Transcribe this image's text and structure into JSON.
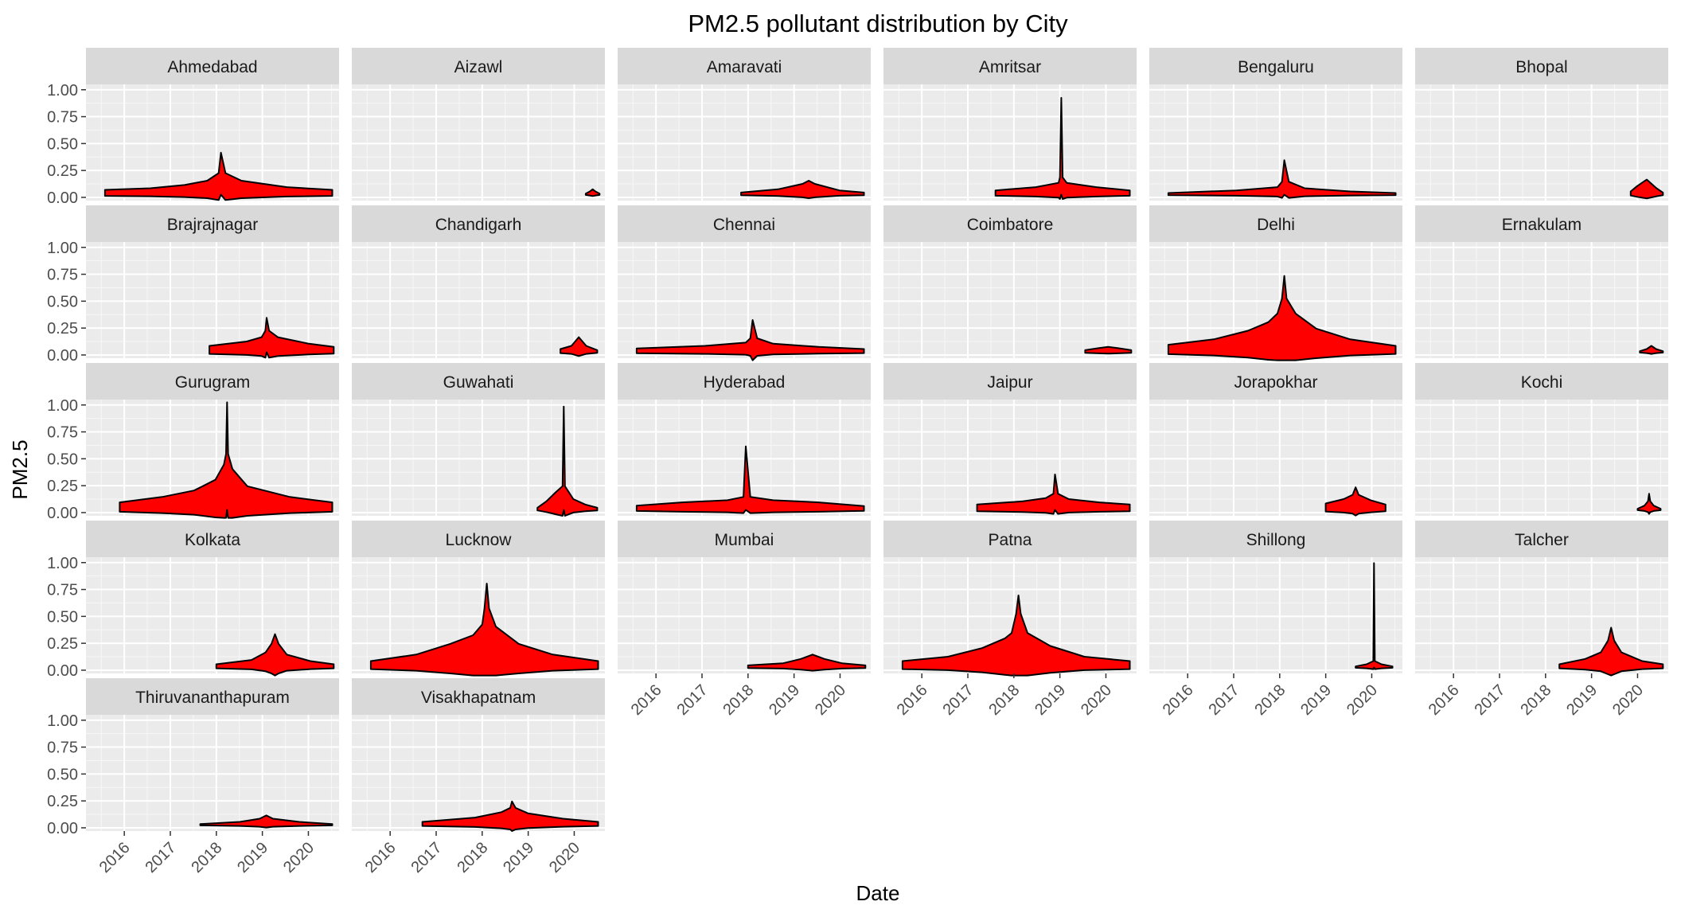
{
  "chart_data": {
    "type": "violin",
    "title": "PM2.5 pollutant distribution by City",
    "xlabel": "Date",
    "ylabel": "PM2.5",
    "x_ticks": [
      "2016",
      "2017",
      "2018",
      "2019",
      "2020"
    ],
    "y_ticks": [
      "0.00",
      "0.25",
      "0.50",
      "0.75",
      "1.00"
    ],
    "ylim": [
      -0.03,
      1.05
    ],
    "xlim": [
      "2015-03",
      "2020-09"
    ],
    "grid": true,
    "fill_color": "#ff0000",
    "outline_color": "#000000",
    "panel_background": "#ebebeb",
    "strip_background": "#d9d9d9",
    "facets": [
      {
        "name": "Ahmedabad",
        "x_start": 2015.58,
        "x_end": 2020.52,
        "profile": [
          [
            0,
            0.045
          ],
          [
            0.2,
            0.06
          ],
          [
            0.35,
            0.09
          ],
          [
            0.45,
            0.13
          ],
          [
            0.5,
            0.2
          ],
          [
            0.51,
            0.39
          ],
          [
            0.53,
            0.2
          ],
          [
            0.6,
            0.13
          ],
          [
            0.8,
            0.07
          ],
          [
            1,
            0.045
          ]
        ]
      },
      {
        "name": "Aizawl",
        "x_start": 2020.25,
        "x_end": 2020.55,
        "profile": [
          [
            0,
            0.01
          ],
          [
            0.3,
            0.03
          ],
          [
            0.5,
            0.05
          ],
          [
            0.7,
            0.03
          ],
          [
            1,
            0.01
          ]
        ]
      },
      {
        "name": "Amaravati",
        "x_start": 2017.85,
        "x_end": 2020.52,
        "profile": [
          [
            0,
            0.02
          ],
          [
            0.3,
            0.05
          ],
          [
            0.5,
            0.1
          ],
          [
            0.55,
            0.13
          ],
          [
            0.6,
            0.1
          ],
          [
            0.8,
            0.04
          ],
          [
            1,
            0.02
          ]
        ]
      },
      {
        "name": "Amritsar",
        "x_start": 2017.6,
        "x_end": 2020.52,
        "profile": [
          [
            0,
            0.04
          ],
          [
            0.3,
            0.07
          ],
          [
            0.47,
            0.11
          ],
          [
            0.48,
            0.16
          ],
          [
            0.49,
            0.9
          ],
          [
            0.5,
            0.16
          ],
          [
            0.53,
            0.11
          ],
          [
            0.75,
            0.07
          ],
          [
            1,
            0.04
          ]
        ]
      },
      {
        "name": "Bengaluru",
        "x_start": 2015.58,
        "x_end": 2020.52,
        "profile": [
          [
            0,
            0.015
          ],
          [
            0.3,
            0.04
          ],
          [
            0.48,
            0.07
          ],
          [
            0.5,
            0.12
          ],
          [
            0.51,
            0.32
          ],
          [
            0.53,
            0.12
          ],
          [
            0.6,
            0.06
          ],
          [
            0.8,
            0.03
          ],
          [
            1,
            0.015
          ]
        ]
      },
      {
        "name": "Bhopal",
        "x_start": 2019.85,
        "x_end": 2020.55,
        "profile": [
          [
            0,
            0.03
          ],
          [
            0.2,
            0.08
          ],
          [
            0.5,
            0.14
          ],
          [
            0.8,
            0.06
          ],
          [
            1,
            0.02
          ]
        ]
      },
      {
        "name": "Brajrajnagar",
        "x_start": 2017.85,
        "x_end": 2020.55,
        "profile": [
          [
            0,
            0.06
          ],
          [
            0.3,
            0.1
          ],
          [
            0.42,
            0.14
          ],
          [
            0.45,
            0.2
          ],
          [
            0.46,
            0.32
          ],
          [
            0.48,
            0.2
          ],
          [
            0.55,
            0.14
          ],
          [
            0.8,
            0.08
          ],
          [
            1,
            0.05
          ]
        ]
      },
      {
        "name": "Chandigarh",
        "x_start": 2019.7,
        "x_end": 2020.5,
        "profile": [
          [
            0,
            0.03
          ],
          [
            0.3,
            0.06
          ],
          [
            0.5,
            0.14
          ],
          [
            0.7,
            0.06
          ],
          [
            1,
            0.02
          ]
        ]
      },
      {
        "name": "Chennai",
        "x_start": 2015.58,
        "x_end": 2020.52,
        "profile": [
          [
            0,
            0.035
          ],
          [
            0.3,
            0.06
          ],
          [
            0.48,
            0.09
          ],
          [
            0.5,
            0.13
          ],
          [
            0.51,
            0.3
          ],
          [
            0.53,
            0.13
          ],
          [
            0.6,
            0.08
          ],
          [
            0.8,
            0.05
          ],
          [
            1,
            0.03
          ]
        ]
      },
      {
        "name": "Coimbatore",
        "x_start": 2019.55,
        "x_end": 2020.55,
        "profile": [
          [
            0,
            0.02
          ],
          [
            0.3,
            0.04
          ],
          [
            0.5,
            0.05
          ],
          [
            0.7,
            0.04
          ],
          [
            1,
            0.02
          ]
        ]
      },
      {
        "name": "Delhi",
        "x_start": 2015.58,
        "x_end": 2020.52,
        "profile": [
          [
            0,
            0.07
          ],
          [
            0.2,
            0.12
          ],
          [
            0.35,
            0.2
          ],
          [
            0.44,
            0.28
          ],
          [
            0.48,
            0.36
          ],
          [
            0.5,
            0.5
          ],
          [
            0.51,
            0.71
          ],
          [
            0.52,
            0.5
          ],
          [
            0.56,
            0.36
          ],
          [
            0.65,
            0.22
          ],
          [
            0.8,
            0.12
          ],
          [
            1,
            0.06
          ]
        ]
      },
      {
        "name": "Ernakulam",
        "x_start": 2020.05,
        "x_end": 2020.55,
        "profile": [
          [
            0,
            0.01
          ],
          [
            0.3,
            0.03
          ],
          [
            0.5,
            0.06
          ],
          [
            0.7,
            0.03
          ],
          [
            1,
            0.01
          ]
        ]
      },
      {
        "name": "Gurugram",
        "x_start": 2015.9,
        "x_end": 2020.52,
        "profile": [
          [
            0,
            0.07
          ],
          [
            0.2,
            0.12
          ],
          [
            0.35,
            0.18
          ],
          [
            0.45,
            0.28
          ],
          [
            0.49,
            0.42
          ],
          [
            0.5,
            0.52
          ],
          [
            0.505,
            1.0
          ],
          [
            0.51,
            0.52
          ],
          [
            0.53,
            0.38
          ],
          [
            0.6,
            0.22
          ],
          [
            0.8,
            0.12
          ],
          [
            1,
            0.07
          ]
        ]
      },
      {
        "name": "Guwahati",
        "x_start": 2019.2,
        "x_end": 2020.5,
        "profile": [
          [
            0,
            0.02
          ],
          [
            0.15,
            0.08
          ],
          [
            0.3,
            0.16
          ],
          [
            0.42,
            0.22
          ],
          [
            0.44,
            0.96
          ],
          [
            0.46,
            0.22
          ],
          [
            0.6,
            0.1
          ],
          [
            0.8,
            0.05
          ],
          [
            1,
            0.02
          ]
        ]
      },
      {
        "name": "Hyderabad",
        "x_start": 2015.58,
        "x_end": 2020.52,
        "profile": [
          [
            0,
            0.04
          ],
          [
            0.2,
            0.07
          ],
          [
            0.4,
            0.09
          ],
          [
            0.47,
            0.12
          ],
          [
            0.48,
            0.59
          ],
          [
            0.5,
            0.12
          ],
          [
            0.6,
            0.09
          ],
          [
            0.8,
            0.07
          ],
          [
            1,
            0.035
          ]
        ]
      },
      {
        "name": "Jaipur",
        "x_start": 2017.2,
        "x_end": 2020.52,
        "profile": [
          [
            0,
            0.05
          ],
          [
            0.3,
            0.08
          ],
          [
            0.45,
            0.11
          ],
          [
            0.5,
            0.15
          ],
          [
            0.51,
            0.33
          ],
          [
            0.53,
            0.15
          ],
          [
            0.6,
            0.1
          ],
          [
            0.8,
            0.07
          ],
          [
            1,
            0.05
          ]
        ]
      },
      {
        "name": "Jorapokhar",
        "x_start": 2019.0,
        "x_end": 2020.3,
        "profile": [
          [
            0,
            0.06
          ],
          [
            0.3,
            0.1
          ],
          [
            0.45,
            0.14
          ],
          [
            0.5,
            0.21
          ],
          [
            0.55,
            0.14
          ],
          [
            0.75,
            0.09
          ],
          [
            1,
            0.05
          ]
        ]
      },
      {
        "name": "Kochi",
        "x_start": 2020.0,
        "x_end": 2020.5,
        "profile": [
          [
            0,
            0.01
          ],
          [
            0.3,
            0.04
          ],
          [
            0.45,
            0.08
          ],
          [
            0.5,
            0.15
          ],
          [
            0.55,
            0.08
          ],
          [
            0.7,
            0.04
          ],
          [
            1,
            0.01
          ]
        ]
      },
      {
        "name": "Kolkata",
        "x_start": 2018.0,
        "x_end": 2020.55,
        "profile": [
          [
            0,
            0.03
          ],
          [
            0.3,
            0.07
          ],
          [
            0.42,
            0.14
          ],
          [
            0.47,
            0.22
          ],
          [
            0.5,
            0.31
          ],
          [
            0.53,
            0.22
          ],
          [
            0.6,
            0.12
          ],
          [
            0.8,
            0.06
          ],
          [
            1,
            0.03
          ]
        ]
      },
      {
        "name": "Lucknow",
        "x_start": 2015.58,
        "x_end": 2020.52,
        "profile": [
          [
            0,
            0.06
          ],
          [
            0.2,
            0.12
          ],
          [
            0.35,
            0.22
          ],
          [
            0.45,
            0.3
          ],
          [
            0.49,
            0.4
          ],
          [
            0.5,
            0.55
          ],
          [
            0.51,
            0.78
          ],
          [
            0.52,
            0.55
          ],
          [
            0.55,
            0.38
          ],
          [
            0.65,
            0.22
          ],
          [
            0.8,
            0.12
          ],
          [
            1,
            0.06
          ]
        ]
      },
      {
        "name": "Mumbai",
        "x_start": 2018.0,
        "x_end": 2020.55,
        "profile": [
          [
            0,
            0.02
          ],
          [
            0.3,
            0.04
          ],
          [
            0.45,
            0.08
          ],
          [
            0.55,
            0.12
          ],
          [
            0.65,
            0.08
          ],
          [
            0.8,
            0.04
          ],
          [
            1,
            0.02
          ]
        ]
      },
      {
        "name": "Patna",
        "x_start": 2015.58,
        "x_end": 2020.52,
        "profile": [
          [
            0,
            0.06
          ],
          [
            0.2,
            0.1
          ],
          [
            0.35,
            0.18
          ],
          [
            0.45,
            0.27
          ],
          [
            0.48,
            0.32
          ],
          [
            0.5,
            0.5
          ],
          [
            0.51,
            0.67
          ],
          [
            0.52,
            0.5
          ],
          [
            0.55,
            0.32
          ],
          [
            0.65,
            0.2
          ],
          [
            0.8,
            0.1
          ],
          [
            1,
            0.06
          ]
        ]
      },
      {
        "name": "Shillong",
        "x_start": 2019.65,
        "x_end": 2020.45,
        "profile": [
          [
            0,
            0.01
          ],
          [
            0.3,
            0.03
          ],
          [
            0.48,
            0.06
          ],
          [
            0.5,
            0.97
          ],
          [
            0.52,
            0.06
          ],
          [
            0.7,
            0.03
          ],
          [
            1,
            0.01
          ]
        ]
      },
      {
        "name": "Talcher",
        "x_start": 2018.3,
        "x_end": 2020.55,
        "profile": [
          [
            0,
            0.03
          ],
          [
            0.25,
            0.08
          ],
          [
            0.4,
            0.14
          ],
          [
            0.47,
            0.25
          ],
          [
            0.5,
            0.37
          ],
          [
            0.53,
            0.25
          ],
          [
            0.6,
            0.14
          ],
          [
            0.8,
            0.06
          ],
          [
            1,
            0.03
          ]
        ]
      },
      {
        "name": "Thiruvananthapuram",
        "x_start": 2017.65,
        "x_end": 2020.52,
        "profile": [
          [
            0,
            0.01
          ],
          [
            0.3,
            0.03
          ],
          [
            0.45,
            0.06
          ],
          [
            0.5,
            0.09
          ],
          [
            0.55,
            0.06
          ],
          [
            0.75,
            0.03
          ],
          [
            1,
            0.01
          ]
        ]
      },
      {
        "name": "Visakhapatnam",
        "x_start": 2016.7,
        "x_end": 2020.52,
        "profile": [
          [
            0,
            0.03
          ],
          [
            0.3,
            0.07
          ],
          [
            0.45,
            0.12
          ],
          [
            0.5,
            0.16
          ],
          [
            0.51,
            0.22
          ],
          [
            0.53,
            0.16
          ],
          [
            0.6,
            0.11
          ],
          [
            0.8,
            0.06
          ],
          [
            1,
            0.03
          ]
        ]
      }
    ]
  }
}
